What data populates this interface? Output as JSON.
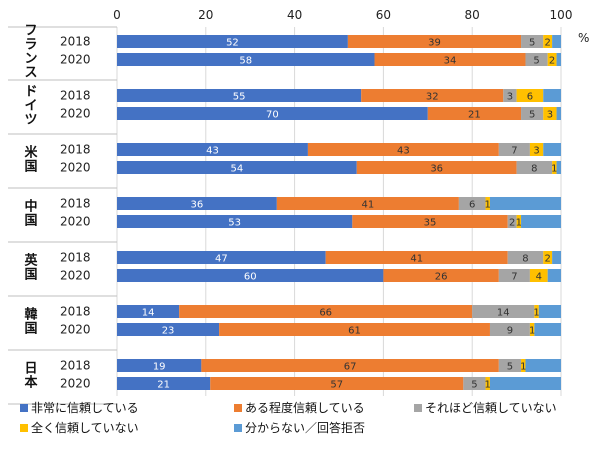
{
  "chart_data": {
    "type": "bar",
    "orientation": "horizontal",
    "stacked": true,
    "xlim": [
      0,
      100
    ],
    "x_ticks": [
      "0",
      "20",
      "40",
      "60",
      "80",
      "100"
    ],
    "unit_label": "%",
    "grid": true,
    "legend_position": "bottom",
    "series": [
      {
        "name": "非常に信頼している",
        "color": "#4472C4",
        "label_color": "#ffffff"
      },
      {
        "name": "ある程度信頼している",
        "color": "#ED7D31",
        "label_color": "#333333"
      },
      {
        "name": "それほど信頼していない",
        "color": "#A5A5A5",
        "label_color": "#333333"
      },
      {
        "name": "全く信頼していない",
        "color": "#FFC000",
        "label_color": "#333333"
      },
      {
        "name": "分からない／回答拒否",
        "color": "#5B9BD5",
        "label_color": "#333333"
      }
    ],
    "groups": [
      {
        "country": "フランス",
        "rows": [
          {
            "year": "2018",
            "values": [
              52,
              39,
              5,
              2,
              2
            ]
          },
          {
            "year": "2020",
            "values": [
              58,
              34,
              5,
              2,
              1
            ]
          }
        ]
      },
      {
        "country": "ドイツ",
        "rows": [
          {
            "year": "2018",
            "values": [
              55,
              32,
              3,
              6,
              4
            ]
          },
          {
            "year": "2020",
            "values": [
              70,
              21,
              5,
              3,
              1
            ]
          }
        ]
      },
      {
        "country": "米国",
        "rows": [
          {
            "year": "2018",
            "values": [
              43,
              43,
              7,
              3,
              4
            ]
          },
          {
            "year": "2020",
            "values": [
              54,
              36,
              8,
              1,
              1
            ]
          }
        ]
      },
      {
        "country": "中国",
        "rows": [
          {
            "year": "2018",
            "values": [
              36,
              41,
              6,
              1,
              16
            ]
          },
          {
            "year": "2020",
            "values": [
              53,
              35,
              2,
              1,
              9
            ]
          }
        ]
      },
      {
        "country": "英国",
        "rows": [
          {
            "year": "2018",
            "values": [
              47,
              41,
              8,
              2,
              2
            ]
          },
          {
            "year": "2020",
            "values": [
              60,
              26,
              7,
              4,
              3
            ]
          }
        ]
      },
      {
        "country": "韓国",
        "rows": [
          {
            "year": "2018",
            "values": [
              14,
              66,
              14,
              1,
              5
            ]
          },
          {
            "year": "2020",
            "values": [
              23,
              61,
              9,
              1,
              6
            ]
          }
        ]
      },
      {
        "country": "日本",
        "rows": [
          {
            "year": "2018",
            "values": [
              19,
              67,
              5,
              1,
              8
            ]
          },
          {
            "year": "2020",
            "values": [
              21,
              57,
              5,
              1,
              16
            ]
          }
        ]
      }
    ]
  }
}
